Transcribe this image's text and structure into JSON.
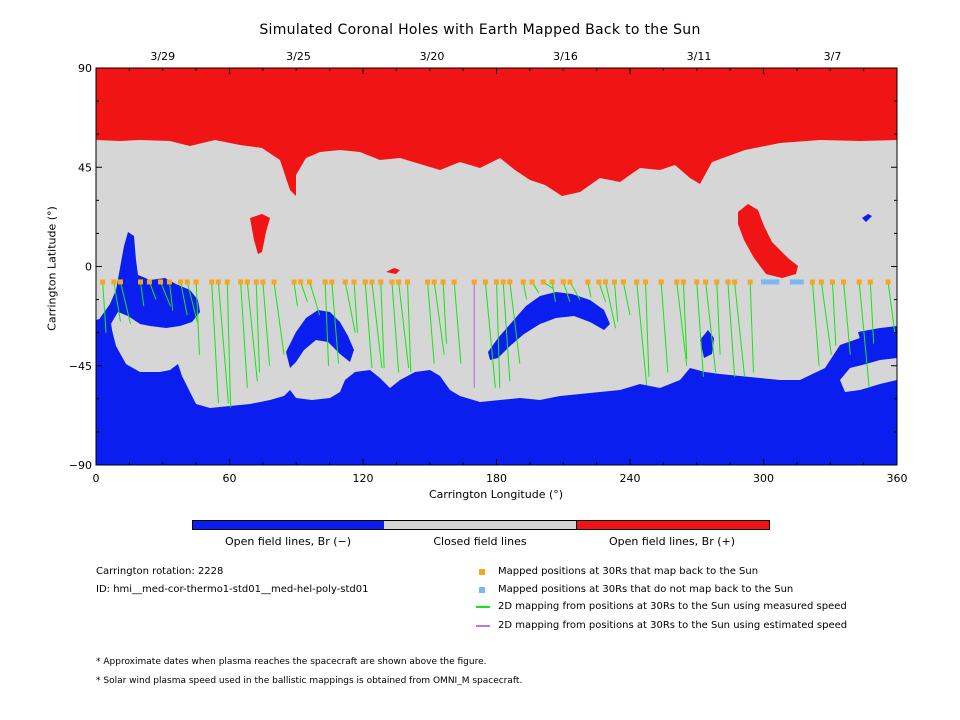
{
  "chart_data": {
    "type": "map",
    "title": "Simulated Coronal Holes with Earth Mapped Back to the Sun",
    "xlabel": "Carrington Longitude (°)",
    "ylabel": "Carrington Latitude (°)",
    "xlim": [
      0,
      360
    ],
    "ylim": [
      -90,
      90
    ],
    "x_ticks": [
      "0",
      "60",
      "120",
      "180",
      "240",
      "300",
      "360"
    ],
    "y_ticks": [
      "90",
      "45",
      "0",
      "−45",
      "−90"
    ],
    "y_tick_values": [
      90,
      45,
      0,
      -45,
      -90
    ],
    "x_tick_values": [
      0,
      60,
      120,
      180,
      240,
      300,
      360
    ],
    "top_dates": [
      {
        "label": "3/29",
        "lon": 30
      },
      {
        "label": "3/25",
        "lon": 91
      },
      {
        "label": "3/20",
        "lon": 151
      },
      {
        "label": "3/16",
        "lon": 211
      },
      {
        "label": "3/11",
        "lon": 271
      },
      {
        "label": "3/7",
        "lon": 331
      }
    ],
    "mapped_latitude": -7,
    "mapped_points_sun": [
      3,
      8,
      11,
      20,
      24,
      29,
      33,
      38,
      41,
      45,
      52,
      55,
      59,
      65,
      68,
      72,
      75,
      80,
      89,
      92,
      96,
      103,
      106,
      112,
      116,
      121,
      124,
      128,
      133,
      136,
      140,
      149,
      152,
      156,
      161,
      170,
      175,
      180,
      183,
      186,
      192,
      196,
      201,
      205,
      210,
      213,
      221,
      226,
      229,
      233,
      237,
      243,
      247,
      254,
      261,
      264,
      270,
      274,
      279,
      284,
      287,
      294,
      322,
      326,
      331,
      336,
      343,
      348,
      356
    ],
    "mapped_points_no_sun": [
      300,
      302,
      304,
      306,
      313,
      315,
      317
    ],
    "measured_speed_lines": [
      [
        3,
        -30
      ],
      [
        8,
        -25
      ],
      [
        11,
        -26
      ],
      [
        20,
        -18
      ],
      [
        24,
        -15
      ],
      [
        29,
        -18
      ],
      [
        33,
        -20
      ],
      [
        38,
        -22
      ],
      [
        41,
        -25
      ],
      [
        45,
        -40
      ],
      [
        52,
        -62
      ],
      [
        55,
        -62
      ],
      [
        59,
        -64
      ],
      [
        65,
        -55
      ],
      [
        68,
        -52
      ],
      [
        72,
        -48
      ],
      [
        75,
        -45
      ],
      [
        80,
        -40
      ],
      [
        89,
        -18
      ],
      [
        92,
        -16
      ],
      [
        96,
        -22
      ],
      [
        103,
        -45
      ],
      [
        106,
        -44
      ],
      [
        112,
        -30
      ],
      [
        116,
        -30
      ],
      [
        121,
        -46
      ],
      [
        124,
        -46
      ],
      [
        128,
        -46
      ],
      [
        133,
        -48
      ],
      [
        136,
        -46
      ],
      [
        140,
        -48
      ],
      [
        149,
        -44
      ],
      [
        152,
        -40
      ],
      [
        156,
        -35
      ],
      [
        161,
        -44
      ],
      [
        175,
        -55
      ],
      [
        180,
        -55
      ],
      [
        183,
        -52
      ],
      [
        186,
        -44
      ],
      [
        192,
        -15
      ],
      [
        196,
        -12
      ],
      [
        201,
        -10
      ],
      [
        205,
        -16
      ],
      [
        210,
        -16
      ],
      [
        213,
        -15
      ],
      [
        221,
        -14
      ],
      [
        226,
        -16
      ],
      [
        229,
        -28
      ],
      [
        233,
        -25
      ],
      [
        237,
        -22
      ],
      [
        243,
        -54
      ],
      [
        247,
        -50
      ],
      [
        254,
        -48
      ],
      [
        261,
        -45
      ],
      [
        264,
        -42
      ],
      [
        270,
        -50
      ],
      [
        274,
        -48
      ],
      [
        279,
        -40
      ],
      [
        284,
        -50
      ],
      [
        287,
        -50
      ],
      [
        294,
        -48
      ],
      [
        322,
        -45
      ],
      [
        326,
        -40
      ],
      [
        331,
        -36
      ],
      [
        336,
        -40
      ],
      [
        343,
        -55
      ],
      [
        348,
        -35
      ],
      [
        356,
        -30
      ]
    ],
    "estimated_speed_lines": [
      [
        170,
        -55
      ]
    ],
    "regions": {
      "open_positive_north_cap_lat": 58,
      "open_negative_south_cap_lat": -50
    }
  },
  "colorbar": [
    {
      "label": "Open field lines, Br (−)",
      "color": "#0a1ef0"
    },
    {
      "label": "Closed field lines",
      "color": "#d6d6d6"
    },
    {
      "label": "Open field lines, Br (+)",
      "color": "#f01414"
    }
  ],
  "info": {
    "rotation": "Carrington rotation: 2228",
    "id": "ID: hmi__med-cor-thermo1-std01__med-hel-poly-std01"
  },
  "legend": [
    {
      "label": "Mapped positions at 30Rs that map back to the Sun",
      "color": "#f5a623",
      "kind": "square"
    },
    {
      "label": "Mapped positions at 30Rs that do not map back to the Sun",
      "color": "#7ab8f5",
      "kind": "square"
    },
    {
      "label": "2D mapping from positions at 30Rs to the Sun using measured speed",
      "color": "#14e614",
      "kind": "line"
    },
    {
      "label": "2D mapping from positions at 30Rs to the Sun using estimated speed",
      "color": "#b47ae6",
      "kind": "line"
    }
  ],
  "notes": [
    "* Approximate dates when plasma reaches the spacecraft are shown above the figure.",
    "* Solar wind plasma speed used in the ballistic mappings is obtained from OMNI_M spacecraft."
  ],
  "colors": {
    "open_neg": "#0a1ef0",
    "closed": "#d6d6d6",
    "open_pos": "#f01414",
    "measured": "#14e614",
    "estimated": "#b47ae6",
    "mapped": "#f5a623",
    "unmapped": "#7ab8f5"
  }
}
